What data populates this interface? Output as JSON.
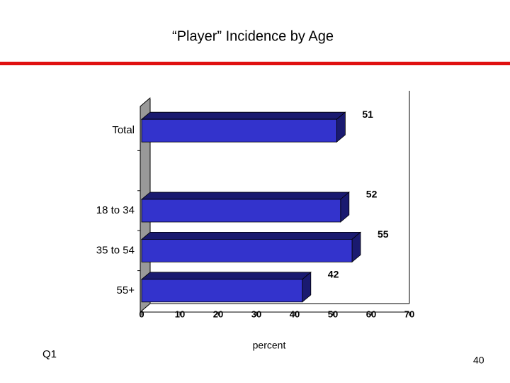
{
  "chart_data": {
    "type": "bar",
    "orientation": "horizontal",
    "title": "“Player” Incidence by Age",
    "categories": [
      "Total",
      null,
      "18 to 34",
      "35 to 54",
      "55+"
    ],
    "values": [
      51,
      null,
      52,
      55,
      42
    ],
    "color": "#3333cc",
    "xlim": [
      0,
      70
    ],
    "xticks": [
      0,
      10,
      20,
      30,
      40,
      50,
      60,
      70
    ],
    "xlabel": "percent"
  },
  "footer": {
    "left": "Q1",
    "page": "40"
  }
}
